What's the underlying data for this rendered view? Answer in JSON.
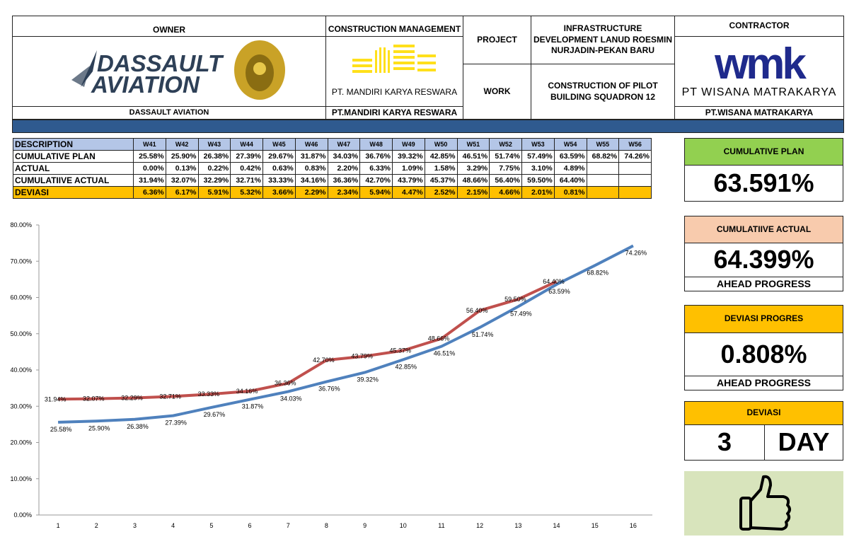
{
  "header": {
    "owner_label": "OWNER",
    "owner_logo": [
      "DASSAULT",
      "AVIATION"
    ],
    "owner_name": "DASSAULT AVIATION",
    "cm_label": "CONSTRUCTION MANAGEMENT",
    "cm_logo_text": "PT. MANDIRI KARYA RESWARA",
    "cm_name": "PT.MANDIRI KARYA RESWARA",
    "project_label": "PROJECT",
    "project_value": "INFRASTRUCTURE DEVELOPMENT LANUD ROESMIN NURJADIN-PEKAN BARU",
    "work_label": "WORK",
    "work_value": "CONSTRUCTION OF PILOT BUILDING SQUADRON 12",
    "contractor_label": "CONTRACTOR",
    "contractor_logo": "wmk",
    "contractor_logo_text": "PT WISANA MATRAKARYA",
    "contractor_name": "PT.WISANA MATRAKARYA"
  },
  "table": {
    "rows": [
      [
        "DESCRIPTION",
        "W41",
        "W42",
        "W43",
        "W44",
        "W45",
        "W46",
        "W47",
        "W48",
        "W49",
        "W50",
        "W51",
        "W52",
        "W53",
        "W54",
        "W55",
        "W56"
      ],
      [
        "CUMULATIVE PLAN",
        "25.58%",
        "25.90%",
        "26.38%",
        "27.39%",
        "29.67%",
        "31.87%",
        "34.03%",
        "36.76%",
        "39.32%",
        "42.85%",
        "46.51%",
        "51.74%",
        "57.49%",
        "63.59%",
        "68.82%",
        "74.26%"
      ],
      [
        "ACTUAL",
        "0.00%",
        "0.13%",
        "0.22%",
        "0.42%",
        "0.63%",
        "0.83%",
        "2.20%",
        "6.33%",
        "1.09%",
        "1.58%",
        "3.29%",
        "7.75%",
        "3.10%",
        "4.89%"
      ],
      [
        "CUMULATIIVE ACTUAL",
        "31.94%",
        "32.07%",
        "32.29%",
        "32.71%",
        "33.33%",
        "34.16%",
        "36.36%",
        "42.70%",
        "43.79%",
        "45.37%",
        "48.66%",
        "56.40%",
        "59.50%",
        "64.40%"
      ],
      [
        "DEVIASI",
        "6.36%",
        "6.17%",
        "5.91%",
        "5.32%",
        "3.66%",
        "2.29%",
        "2.34%",
        "5.94%",
        "4.47%",
        "2.52%",
        "2.15%",
        "4.66%",
        "2.01%",
        "0.81%"
      ]
    ]
  },
  "cards": {
    "plan": {
      "title": "CUMULATIVE PLAN",
      "value": "63.591%"
    },
    "actual": {
      "title": "CUMULATIIVE ACTUAL",
      "value": "64.399%",
      "note": "AHEAD PROGRESS"
    },
    "progress": {
      "title": "DEVIASI PROGRES",
      "value": "0.808%",
      "note": "AHEAD PROGRESS"
    },
    "deviasi": {
      "title": "DEVIASI",
      "value": "3",
      "unit": "DAY"
    }
  },
  "chart_data": {
    "type": "line",
    "categories": [
      "1",
      "2",
      "3",
      "4",
      "5",
      "6",
      "7",
      "8",
      "9",
      "10",
      "11",
      "12",
      "13",
      "14",
      "15",
      "16"
    ],
    "ylim": [
      0,
      80
    ],
    "yticks": [
      {
        "value": 0,
        "label": "0.00%"
      },
      {
        "value": 10,
        "label": "10.00%"
      },
      {
        "value": 20,
        "label": "20.00%"
      },
      {
        "value": 30,
        "label": "30.00%"
      },
      {
        "value": 40,
        "label": "40.00%"
      },
      {
        "value": 50,
        "label": "50.00%"
      },
      {
        "value": 60,
        "label": "60.00%"
      },
      {
        "value": 70,
        "label": "70.00%"
      },
      {
        "value": 80,
        "label": "80.00%"
      }
    ],
    "grid": false,
    "series": [
      {
        "color": "#4f81bd",
        "values": [
          25.58,
          25.9,
          26.38,
          27.39,
          29.67,
          31.87,
          34.03,
          36.76,
          39.32,
          42.85,
          46.51,
          51.74,
          57.49,
          63.59,
          68.82,
          74.26
        ],
        "value_labels": [
          "25.58%",
          "25.90%",
          "26.38%",
          "27.39%",
          "29.67%",
          "31.87%",
          "34.03%",
          "36.76%",
          "39.32%",
          "42.85%",
          "46.51%",
          "51.74%",
          "57.49%",
          "63.59%",
          "68.82%",
          "74.26%"
        ]
      },
      {
        "color": "#c0504d",
        "values": [
          31.94,
          32.07,
          32.29,
          32.71,
          33.33,
          34.16,
          36.36,
          42.7,
          43.79,
          45.37,
          48.66,
          56.4,
          59.5,
          64.4,
          null,
          null
        ],
        "value_labels": [
          "31.94%",
          "32.07%",
          "32.29%",
          "32.71%",
          "33.33%",
          "34.16%",
          "36.36%",
          "42.70%",
          "43.79%",
          "45.37%",
          "48.66%",
          "56.40%",
          "59.50%",
          "64.40%",
          null,
          null
        ]
      }
    ]
  }
}
